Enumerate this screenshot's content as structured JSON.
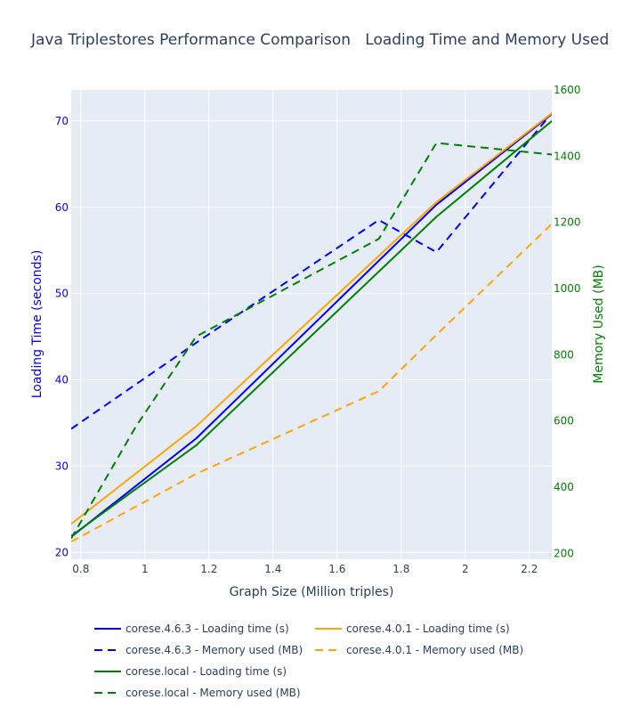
{
  "chart_data": {
    "type": "line",
    "title": "Java Triplestores Performance Comparison   Loading Time and Memory Used",
    "xlabel": "Graph Size (Million triples)",
    "ylabel": "Loading Time (seconds)",
    "y2label": "Memory Used (MB)",
    "xlim": [
      0.77,
      2.27
    ],
    "ylim": [
      19.2,
      73.6
    ],
    "y2lim": [
      182,
      1600
    ],
    "xticks": [
      0.8,
      1,
      1.2,
      1.4,
      1.6,
      1.8,
      2,
      2.2
    ],
    "xtick_labels": [
      "0.8",
      "1",
      "1.2",
      "1.4",
      "1.6",
      "1.8",
      "2",
      "2.2"
    ],
    "yticks": [
      20,
      30,
      40,
      50,
      60,
      70
    ],
    "ytick_labels": [
      "20",
      "30",
      "40",
      "50",
      "60",
      "70"
    ],
    "y2ticks": [
      200,
      400,
      600,
      800,
      1000,
      1200,
      1400,
      1600
    ],
    "y2tick_labels": [
      "200",
      "400",
      "600",
      "800",
      "1000",
      "1200",
      "1400",
      "1600"
    ],
    "grid": true,
    "legend_position": "bottom",
    "colors": {
      "plot_bg": "#e5ecf6",
      "grid": "#ffffff",
      "text": "#2a3f5f",
      "left_axis": "#0000ff",
      "right_axis": "#008000"
    },
    "series": [
      {
        "name": "corese.4.6.3 - Loading time (s)",
        "axis": "y",
        "dash": "solid",
        "color": "#0000ff",
        "x": [
          0.77,
          1.16,
          1.91,
          2.27
        ],
        "y": [
          21.8,
          33.2,
          60.3,
          70.8
        ]
      },
      {
        "name": "corese.4.6.3 - Memory used (MB)",
        "axis": "y2",
        "dash": "dash",
        "color": "#0000ff",
        "x": [
          0.77,
          1.16,
          1.73,
          1.91,
          2.27
        ],
        "y": [
          576,
          836,
          1207,
          1110,
          1530
        ]
      },
      {
        "name": "corese.4.0.1 - Loading time (s)",
        "axis": "y",
        "dash": "solid",
        "color": "#ffa500",
        "x": [
          0.77,
          1.16,
          1.91,
          2.27
        ],
        "y": [
          23.3,
          34.6,
          60.6,
          70.9
        ]
      },
      {
        "name": "corese.4.0.1 - Memory used (MB)",
        "axis": "y2",
        "dash": "dash",
        "color": "#ffa500",
        "x": [
          0.77,
          1.16,
          1.73,
          1.91,
          2.27
        ],
        "y": [
          235,
          440,
          690,
          860,
          1195
        ]
      },
      {
        "name": "corese.local - Loading time (s)",
        "axis": "y",
        "dash": "solid",
        "color": "#008000",
        "x": [
          0.77,
          1.16,
          1.91,
          2.27
        ],
        "y": [
          21.9,
          32.4,
          58.9,
          70.0
        ]
      },
      {
        "name": "corese.local - Memory used (MB)",
        "axis": "y2",
        "dash": "dash",
        "color": "#008000",
        "x": [
          0.77,
          0.97,
          1.16,
          1.73,
          1.91,
          2.27
        ],
        "y": [
          245,
          580,
          855,
          1150,
          1440,
          1405
        ]
      }
    ]
  }
}
